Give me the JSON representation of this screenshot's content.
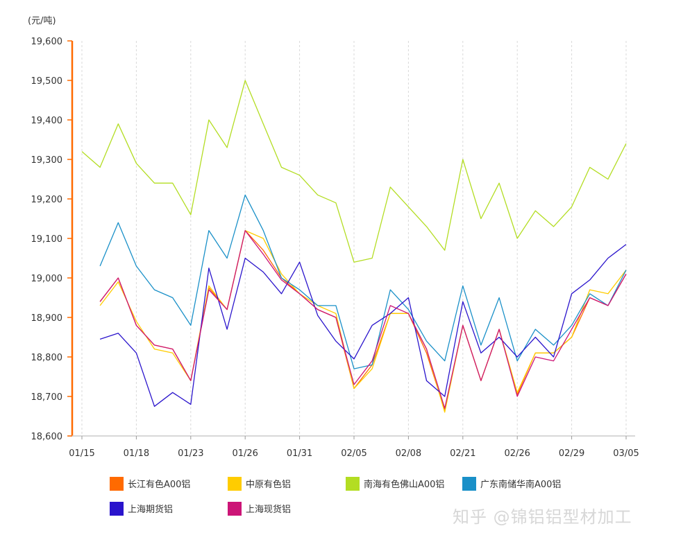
{
  "chart_data": {
    "type": "line",
    "unit_label": "(元/吨)",
    "ylim": [
      18600,
      19600
    ],
    "y_ticks": [
      19600,
      19500,
      19400,
      19300,
      19200,
      19100,
      19000,
      18900,
      18800,
      18700,
      18600
    ],
    "y_tick_labels": [
      "19,600",
      "19,500",
      "19,400",
      "19,300",
      "19,200",
      "19,100",
      "19,000",
      "18,900",
      "18,800",
      "18,700",
      "18,600"
    ],
    "num_points": 31,
    "x_tick_positions": [
      0,
      3,
      6,
      9,
      12,
      15,
      18,
      21,
      24,
      27,
      30
    ],
    "x_tick_labels": [
      "01/15",
      "01/18",
      "01/23",
      "01/26",
      "01/31",
      "02/05",
      "02/08",
      "02/21",
      "02/26",
      "02/29",
      "03/05"
    ],
    "series": [
      {
        "name": "长江有色A00铝",
        "color": "#ff6a00",
        "values": [
          null,
          18940,
          19000,
          18880,
          18830,
          18820,
          18740,
          18975,
          18920,
          19120,
          19070,
          19000,
          18960,
          18920,
          18900,
          18720,
          18780,
          18910,
          18910,
          18810,
          18665,
          18880,
          18740,
          18870,
          18705,
          18810,
          18810,
          18850,
          18950,
          18930,
          19010
        ]
      },
      {
        "name": "中原有色铝",
        "color": "#ffcc00",
        "values": [
          null,
          18930,
          18990,
          18890,
          18820,
          18810,
          18740,
          18980,
          18920,
          19120,
          19100,
          19010,
          18960,
          18930,
          18910,
          18720,
          18770,
          18910,
          18910,
          18820,
          18660,
          18880,
          18740,
          18870,
          18710,
          18810,
          18810,
          18850,
          18970,
          18960,
          19020
        ]
      },
      {
        "name": "南海有色佛山A00铝",
        "color": "#b3dd22",
        "values": [
          19320,
          19280,
          19390,
          19290,
          19240,
          19240,
          19160,
          19400,
          19330,
          19500,
          19390,
          19280,
          19260,
          19210,
          19190,
          19040,
          19050,
          19230,
          19180,
          19130,
          19070,
          19300,
          19150,
          19240,
          19100,
          19170,
          19130,
          19180,
          19280,
          19250,
          19340
        ]
      },
      {
        "name": "广东南储华南A00铝",
        "color": "#1a90c8",
        "values": [
          null,
          19030,
          19140,
          19030,
          18970,
          18950,
          18880,
          19120,
          19050,
          19210,
          19120,
          19000,
          18970,
          18930,
          18930,
          18770,
          18780,
          18970,
          18920,
          18840,
          18790,
          18980,
          18830,
          18950,
          18790,
          18870,
          18830,
          18880,
          18960,
          18930,
          19020
        ]
      },
      {
        "name": "上海期货铝",
        "color": "#2a14cc",
        "values": [
          null,
          18845,
          18860,
          18810,
          18675,
          18710,
          18680,
          19025,
          18870,
          19050,
          19015,
          18960,
          19040,
          18905,
          18840,
          18795,
          18880,
          18910,
          18950,
          18740,
          18700,
          18940,
          18810,
          18850,
          18800,
          18850,
          18800,
          18960,
          18995,
          19050,
          19085
        ]
      },
      {
        "name": "上海现货铝",
        "color": "#cc1577",
        "values": [
          null,
          18940,
          19000,
          18880,
          18830,
          18820,
          18740,
          18970,
          18920,
          19120,
          19060,
          18995,
          18960,
          18920,
          18900,
          18730,
          18790,
          18930,
          18910,
          18820,
          18670,
          18880,
          18740,
          18870,
          18700,
          18800,
          18790,
          18870,
          18950,
          18930,
          19010
        ]
      }
    ]
  },
  "watermark": "知乎 @锦铝铝型材加工"
}
